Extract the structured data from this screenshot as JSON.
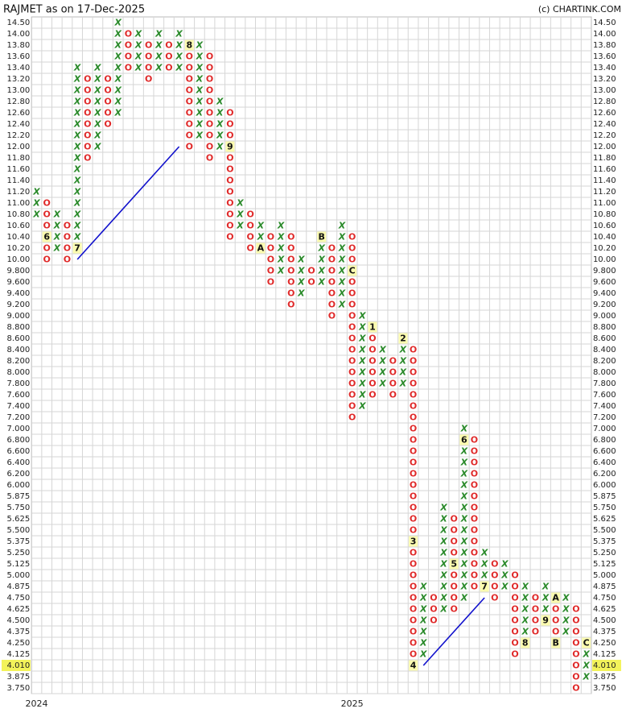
{
  "chart_data": {
    "type": "point_figure",
    "title": "RAJMET as on 17-Dec-2025",
    "source": "(c) CHARTINK.COM",
    "current_price": 4.01,
    "x_color": "#2a8a2a",
    "o_color": "#e02a2a",
    "levels": [
      {
        "value": 14.5,
        "label": "14.50"
      },
      {
        "value": 14.0,
        "label": "14.00"
      },
      {
        "value": 13.8,
        "label": "13.80"
      },
      {
        "value": 13.6,
        "label": "13.60"
      },
      {
        "value": 13.4,
        "label": "13.40"
      },
      {
        "value": 13.2,
        "label": "13.20"
      },
      {
        "value": 13.0,
        "label": "13.00"
      },
      {
        "value": 12.8,
        "label": "12.80"
      },
      {
        "value": 12.6,
        "label": "12.60"
      },
      {
        "value": 12.4,
        "label": "12.40"
      },
      {
        "value": 12.2,
        "label": "12.20"
      },
      {
        "value": 12.0,
        "label": "12.00"
      },
      {
        "value": 11.8,
        "label": "11.80"
      },
      {
        "value": 11.6,
        "label": "11.60"
      },
      {
        "value": 11.4,
        "label": "11.40"
      },
      {
        "value": 11.2,
        "label": "11.20"
      },
      {
        "value": 11.0,
        "label": "11.00"
      },
      {
        "value": 10.8,
        "label": "10.80"
      },
      {
        "value": 10.6,
        "label": "10.60"
      },
      {
        "value": 10.4,
        "label": "10.40"
      },
      {
        "value": 10.2,
        "label": "10.20"
      },
      {
        "value": 10.0,
        "label": "10.00"
      },
      {
        "value": 9.8,
        "label": "9.800"
      },
      {
        "value": 9.6,
        "label": "9.600"
      },
      {
        "value": 9.4,
        "label": "9.400"
      },
      {
        "value": 9.2,
        "label": "9.200"
      },
      {
        "value": 9.0,
        "label": "9.000"
      },
      {
        "value": 8.8,
        "label": "8.800"
      },
      {
        "value": 8.6,
        "label": "8.600"
      },
      {
        "value": 8.4,
        "label": "8.400"
      },
      {
        "value": 8.2,
        "label": "8.200"
      },
      {
        "value": 8.0,
        "label": "8.000"
      },
      {
        "value": 7.8,
        "label": "7.800"
      },
      {
        "value": 7.6,
        "label": "7.600"
      },
      {
        "value": 7.4,
        "label": "7.400"
      },
      {
        "value": 7.2,
        "label": "7.200"
      },
      {
        "value": 7.0,
        "label": "7.000"
      },
      {
        "value": 6.8,
        "label": "6.800"
      },
      {
        "value": 6.6,
        "label": "6.600"
      },
      {
        "value": 6.4,
        "label": "6.400"
      },
      {
        "value": 6.2,
        "label": "6.200"
      },
      {
        "value": 6.0,
        "label": "6.000"
      },
      5.875,
      {
        "value": 5.75,
        "label": "5.750"
      },
      5.625,
      {
        "value": 5.5,
        "label": "5.500"
      },
      5.375,
      {
        "value": 5.25,
        "label": "5.250"
      },
      5.125,
      {
        "value": 5.0,
        "label": "5.000"
      },
      4.875,
      {
        "value": 4.75,
        "label": "4.750"
      },
      4.625,
      {
        "value": 4.5,
        "label": "4.500"
      },
      4.375,
      {
        "value": 4.25,
        "label": "4.250"
      },
      4.125,
      {
        "value": 4.01,
        "label": "4.010"
      },
      3.875,
      {
        "value": 3.75,
        "label": "3.750"
      }
    ],
    "columns": [
      {
        "kind": "X",
        "high": 11.2,
        "low": 10.8,
        "year": "2024"
      },
      {
        "kind": "O",
        "high": 11.0,
        "low": 10.0,
        "marks": [
          {
            "value": 10.4,
            "label": "6"
          }
        ]
      },
      {
        "kind": "X",
        "high": 10.8,
        "low": 10.2
      },
      {
        "kind": "O",
        "high": 10.6,
        "low": 10.0
      },
      {
        "kind": "X",
        "high": 13.4,
        "low": 10.2,
        "marks": [
          {
            "value": 10.2,
            "label": "7"
          }
        ]
      },
      {
        "kind": "O",
        "high": 13.2,
        "low": 11.8
      },
      {
        "kind": "X",
        "high": 13.4,
        "low": 12.0
      },
      {
        "kind": "O",
        "high": 13.2,
        "low": 12.4
      },
      {
        "kind": "X",
        "high": 14.5,
        "low": 12.6
      },
      {
        "kind": "O",
        "high": 14.0,
        "low": 13.4
      },
      {
        "kind": "X",
        "high": 14.0,
        "low": 13.4
      },
      {
        "kind": "O",
        "high": 13.8,
        "low": 13.2
      },
      {
        "kind": "X",
        "high": 14.0,
        "low": 13.4
      },
      {
        "kind": "O",
        "high": 13.8,
        "low": 13.4
      },
      {
        "kind": "X",
        "high": 14.0,
        "low": 13.4
      },
      {
        "kind": "O",
        "high": 13.8,
        "low": 12.0,
        "marks": [
          {
            "value": 13.8,
            "label": "8"
          }
        ]
      },
      {
        "kind": "X",
        "high": 13.8,
        "low": 12.2
      },
      {
        "kind": "O",
        "high": 13.6,
        "low": 11.8
      },
      {
        "kind": "X",
        "high": 12.8,
        "low": 12.0
      },
      {
        "kind": "O",
        "high": 12.6,
        "low": 10.4,
        "marks": [
          {
            "value": 12.0,
            "label": "9"
          }
        ]
      },
      {
        "kind": "X",
        "high": 11.0,
        "low": 10.6
      },
      {
        "kind": "O",
        "high": 10.8,
        "low": 10.2
      },
      {
        "kind": "X",
        "high": 10.6,
        "low": 10.2,
        "marks": [
          {
            "value": 10.2,
            "label": "A"
          }
        ]
      },
      {
        "kind": "O",
        "high": 10.4,
        "low": 9.6
      },
      {
        "kind": "X",
        "high": 10.6,
        "low": 9.8
      },
      {
        "kind": "O",
        "high": 10.4,
        "low": 9.2
      },
      {
        "kind": "X",
        "high": 10.0,
        "low": 9.4
      },
      {
        "kind": "O",
        "high": 9.8,
        "low": 9.6
      },
      {
        "kind": "X",
        "high": 10.4,
        "low": 9.6,
        "marks": [
          {
            "value": 10.4,
            "label": "B"
          }
        ]
      },
      {
        "kind": "O",
        "high": 10.2,
        "low": 9.0
      },
      {
        "kind": "X",
        "high": 10.6,
        "low": 9.2
      },
      {
        "kind": "O",
        "high": 10.4,
        "low": 7.2,
        "marks": [
          {
            "value": 9.8,
            "label": "C"
          }
        ],
        "year": "2025"
      },
      {
        "kind": "X",
        "high": 9.0,
        "low": 7.4
      },
      {
        "kind": "O",
        "high": 8.8,
        "low": 7.6,
        "marks": [
          {
            "value": 8.8,
            "label": "1"
          }
        ]
      },
      {
        "kind": "X",
        "high": 8.4,
        "low": 7.8
      },
      {
        "kind": "O",
        "high": 8.2,
        "low": 7.6
      },
      {
        "kind": "X",
        "high": 8.6,
        "low": 7.8,
        "marks": [
          {
            "value": 8.6,
            "label": "2"
          }
        ]
      },
      {
        "kind": "O",
        "high": 8.4,
        "low": 4.01,
        "marks": [
          {
            "value": 5.375,
            "label": "3"
          },
          {
            "value": 4.01,
            "label": "4"
          }
        ]
      },
      {
        "kind": "X",
        "high": 4.875,
        "low": 4.125
      },
      {
        "kind": "O",
        "high": 4.75,
        "low": 4.5
      },
      {
        "kind": "X",
        "high": 5.75,
        "low": 4.625
      },
      {
        "kind": "O",
        "high": 5.625,
        "low": 4.625,
        "marks": [
          {
            "value": 5.125,
            "label": "5"
          }
        ]
      },
      {
        "kind": "X",
        "high": 7.0,
        "low": 4.75,
        "marks": [
          {
            "value": 6.8,
            "label": "6"
          }
        ]
      },
      {
        "kind": "O",
        "high": 6.8,
        "low": 4.875
      },
      {
        "kind": "X",
        "high": 5.25,
        "low": 4.875,
        "marks": [
          {
            "value": 4.875,
            "label": "7"
          }
        ]
      },
      {
        "kind": "O",
        "high": 5.125,
        "low": 4.75
      },
      {
        "kind": "X",
        "high": 5.125,
        "low": 4.875
      },
      {
        "kind": "O",
        "high": 5.0,
        "low": 4.125
      },
      {
        "kind": "X",
        "high": 4.875,
        "low": 4.25,
        "marks": [
          {
            "value": 4.25,
            "label": "8"
          }
        ]
      },
      {
        "kind": "O",
        "high": 4.75,
        "low": 4.375
      },
      {
        "kind": "X",
        "high": 4.875,
        "low": 4.5,
        "marks": [
          {
            "value": 4.5,
            "label": "9"
          }
        ]
      },
      {
        "kind": "O",
        "high": 4.75,
        "low": 4.25,
        "marks": [
          {
            "value": 4.75,
            "label": "A"
          },
          {
            "value": 4.25,
            "label": "B"
          }
        ]
      },
      {
        "kind": "X",
        "high": 4.75,
        "low": 4.375
      },
      {
        "kind": "O",
        "high": 4.625,
        "low": 3.75
      },
      {
        "kind": "X",
        "high": 4.25,
        "low": 3.875,
        "marks": [
          {
            "value": 4.25,
            "label": "C"
          }
        ]
      }
    ]
  }
}
